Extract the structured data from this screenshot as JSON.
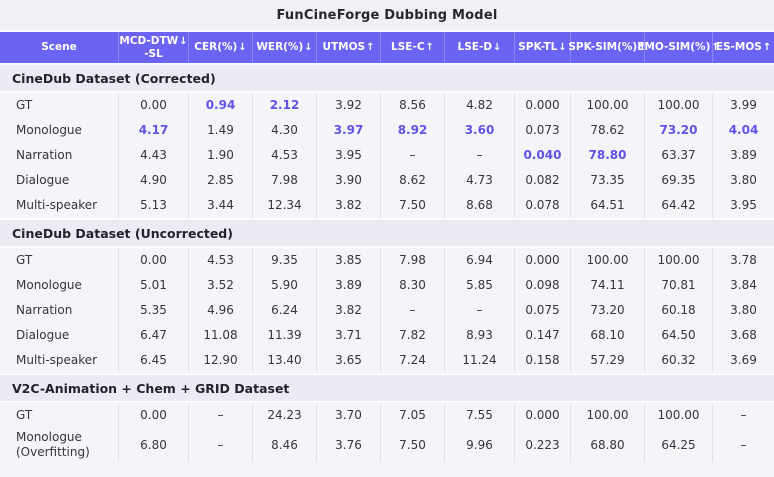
{
  "title": "FunCineForge Dubbing Model",
  "colors": {
    "header_bg": "#6D63F3",
    "header_divider": "#8E86F7",
    "header_text": "#FFFFFF",
    "accent": "#6153E6",
    "section_bg": "#ECEBF3",
    "block_bg": "#F5F4F9",
    "divider": "#E2E1EA",
    "title_band_bg": "#F1F0F4",
    "text": "#35353F"
  },
  "chart_data": {
    "type": "table",
    "title": "FunCineForge Dubbing Model",
    "columns": [
      {
        "label": "Scene",
        "arrow": ""
      },
      {
        "label": "MCD-DTW",
        "label2": "-SL",
        "arrow": "↓"
      },
      {
        "label": "CER(%)",
        "arrow": "↓"
      },
      {
        "label": "WER(%)",
        "arrow": "↓"
      },
      {
        "label": "UTMOS",
        "arrow": "↑"
      },
      {
        "label": "LSE-C",
        "arrow": "↑"
      },
      {
        "label": "LSE-D",
        "arrow": "↓"
      },
      {
        "label": "SPK-TL",
        "arrow": "↓"
      },
      {
        "label": "SPK-SIM(%)",
        "arrow": "↑"
      },
      {
        "label": "EMO-SIM(%)",
        "arrow": "↑"
      },
      {
        "label": "ES-MOS",
        "arrow": "↑"
      }
    ],
    "sections": [
      {
        "title": "CineDub Dataset (Corrected)",
        "rows": [
          {
            "scene": "GT",
            "values": [
              "0.00",
              "0.94",
              "2.12",
              "3.92",
              "8.56",
              "4.82",
              "0.000",
              "100.00",
              "100.00",
              "3.99"
            ],
            "bold": [
              1,
              2
            ]
          },
          {
            "scene": "Monologue",
            "values": [
              "4.17",
              "1.49",
              "4.30",
              "3.97",
              "8.92",
              "3.60",
              "0.073",
              "78.62",
              "73.20",
              "4.04"
            ],
            "bold": [
              0,
              3,
              4,
              5,
              8,
              9
            ]
          },
          {
            "scene": "Narration",
            "values": [
              "4.43",
              "1.90",
              "4.53",
              "3.95",
              "–",
              "–",
              "0.040",
              "78.80",
              "63.37",
              "3.89"
            ],
            "bold": [
              6,
              7
            ]
          },
          {
            "scene": "Dialogue",
            "values": [
              "4.90",
              "2.85",
              "7.98",
              "3.90",
              "8.62",
              "4.73",
              "0.082",
              "73.35",
              "69.35",
              "3.80"
            ],
            "bold": []
          },
          {
            "scene": "Multi-speaker",
            "values": [
              "5.13",
              "3.44",
              "12.34",
              "3.82",
              "7.50",
              "8.68",
              "0.078",
              "64.51",
              "64.42",
              "3.95"
            ],
            "bold": []
          }
        ]
      },
      {
        "title": "CineDub Dataset (Uncorrected)",
        "rows": [
          {
            "scene": "GT",
            "values": [
              "0.00",
              "4.53",
              "9.35",
              "3.85",
              "7.98",
              "6.94",
              "0.000",
              "100.00",
              "100.00",
              "3.78"
            ],
            "bold": []
          },
          {
            "scene": "Monologue",
            "values": [
              "5.01",
              "3.52",
              "5.90",
              "3.89",
              "8.30",
              "5.85",
              "0.098",
              "74.11",
              "70.81",
              "3.84"
            ],
            "bold": []
          },
          {
            "scene": "Narration",
            "values": [
              "5.35",
              "4.96",
              "6.24",
              "3.82",
              "–",
              "–",
              "0.075",
              "73.20",
              "60.18",
              "3.80"
            ],
            "bold": []
          },
          {
            "scene": "Dialogue",
            "values": [
              "6.47",
              "11.08",
              "11.39",
              "3.71",
              "7.82",
              "8.93",
              "0.147",
              "68.10",
              "64.50",
              "3.68"
            ],
            "bold": []
          },
          {
            "scene": "Multi-speaker",
            "values": [
              "6.45",
              "12.90",
              "13.40",
              "3.65",
              "7.24",
              "11.24",
              "0.158",
              "57.29",
              "60.32",
              "3.69"
            ],
            "bold": []
          }
        ]
      },
      {
        "title": "V2C-Animation + Chem + GRID Dataset",
        "rows": [
          {
            "scene": "GT",
            "values": [
              "0.00",
              "–",
              "24.23",
              "3.70",
              "7.05",
              "7.55",
              "0.000",
              "100.00",
              "100.00",
              "–"
            ],
            "bold": []
          },
          {
            "scene": "Monologue (Overfitting)",
            "values": [
              "6.80",
              "–",
              "8.46",
              "3.76",
              "7.50",
              "9.96",
              "0.223",
              "68.80",
              "64.25",
              "–"
            ],
            "bold": []
          }
        ]
      }
    ]
  }
}
